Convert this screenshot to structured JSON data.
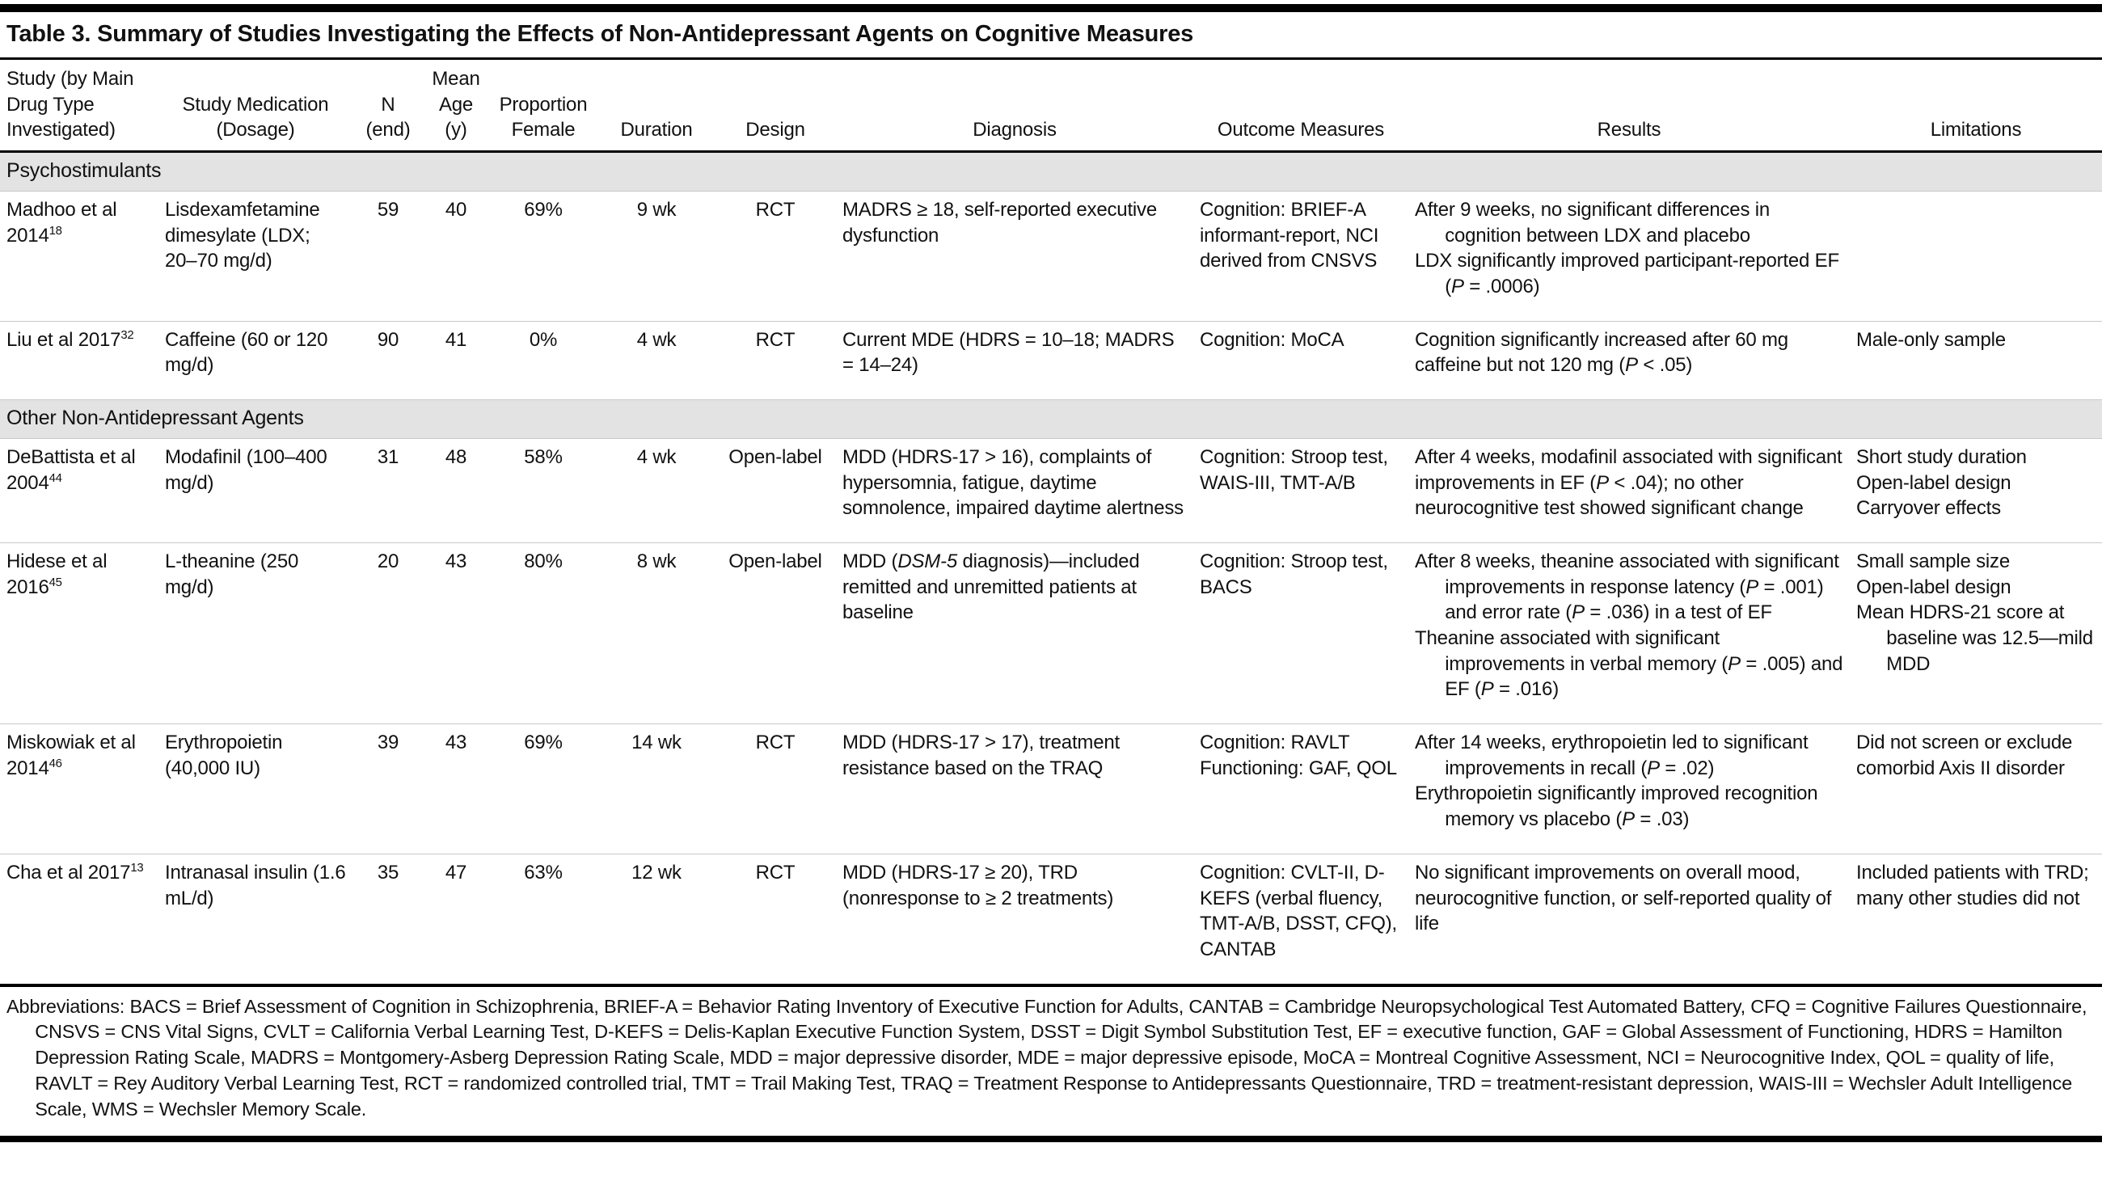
{
  "table": {
    "title": "Table 3. Summary of Studies Investigating the Effects of Non-Antidepressant Agents on Cognitive Measures",
    "columns": [
      {
        "key": "study",
        "align": "left",
        "cellAlign": "left",
        "lines": [
          "Study (by Main",
          "Drug Type",
          "Investigated)"
        ]
      },
      {
        "key": "medication",
        "align": "center",
        "cellAlign": "left",
        "lines": [
          "Study Medication",
          "(Dosage)"
        ]
      },
      {
        "key": "n",
        "align": "center",
        "cellAlign": "center",
        "lines": [
          "N",
          "(end)"
        ]
      },
      {
        "key": "age",
        "align": "center",
        "cellAlign": "center",
        "lines": [
          "Mean",
          "Age",
          "(y)"
        ]
      },
      {
        "key": "female",
        "align": "center",
        "cellAlign": "center",
        "lines": [
          "Proportion",
          "Female"
        ]
      },
      {
        "key": "duration",
        "align": "center",
        "cellAlign": "center",
        "lines": [
          "Duration"
        ]
      },
      {
        "key": "design",
        "align": "center",
        "cellAlign": "center",
        "lines": [
          "Design"
        ]
      },
      {
        "key": "diagnosis",
        "align": "center",
        "cellAlign": "left",
        "lines": [
          "Diagnosis"
        ]
      },
      {
        "key": "outcomes",
        "align": "center",
        "cellAlign": "left",
        "lines": [
          "Outcome Measures"
        ]
      },
      {
        "key": "results",
        "align": "center",
        "cellAlign": "left",
        "lines": [
          "Results"
        ]
      },
      {
        "key": "limitations",
        "align": "center",
        "cellAlign": "left",
        "lines": [
          "Limitations"
        ]
      }
    ],
    "sections": [
      {
        "label": "Psychostimulants",
        "rows": [
          {
            "study": "Madhoo et al 2014",
            "ref": "18",
            "medication": "Lisdexamfetamine dimesylate (LDX; 20–70 mg/d)",
            "n": "59",
            "age": "40",
            "female": "69%",
            "duration": "9 wk",
            "design": "RCT",
            "diagnosis": "MADRS ≥ 18, self-reported executive dysfunction",
            "outcomes": [
              "Cognition: BRIEF-A informant-report, NCI derived from CNSVS"
            ],
            "results": [
              "After 9 weeks, no significant differences in cognition between LDX and placebo",
              "LDX significantly improved participant-reported EF (*P* = .0006)"
            ],
            "limitations": []
          },
          {
            "study": "Liu et al 2017",
            "ref": "32",
            "medication": "Caffeine (60 or 120 mg/d)",
            "n": "90",
            "age": "41",
            "female": "0%",
            "duration": "4 wk",
            "design": "RCT",
            "diagnosis": "Current MDE (HDRS = 10–18; MADRS = 14–24)",
            "outcomes": [
              "Cognition: MoCA"
            ],
            "results": [
              "Cognition significantly increased after 60 mg caffeine but not 120 mg (*P* < .05)"
            ],
            "limitations": [
              "Male-only sample"
            ]
          }
        ]
      },
      {
        "label": "Other Non-Antidepressant Agents",
        "rows": [
          {
            "study": "DeBattista et al 2004",
            "ref": "44",
            "medication": "Modafinil (100–400 mg/d)",
            "n": "31",
            "age": "48",
            "female": "58%",
            "duration": "4 wk",
            "design": "Open-label",
            "diagnosis": "MDD (HDRS-17 > 16), complaints of hypersomnia, fatigue, daytime somnolence, impaired daytime alertness",
            "outcomes": [
              "Cognition: Stroop test, WAIS-III, TMT-A/B"
            ],
            "results": [
              "After 4 weeks, modafinil associated with significant improvements in EF (*P* < .04); no other neurocognitive test showed significant change"
            ],
            "limitations": [
              "Short study duration",
              "Open-label design",
              "Carryover effects"
            ]
          },
          {
            "study": "Hidese et al 2016",
            "ref": "45",
            "medication": "L-theanine (250 mg/d)",
            "n": "20",
            "age": "43",
            "female": "80%",
            "duration": "8 wk",
            "design": "Open-label",
            "diagnosis": "MDD (*DSM-5* diagnosis)—included remitted and unremitted patients at baseline",
            "outcomes": [
              "Cognition: Stroop test, BACS"
            ],
            "results": [
              "After 8 weeks, theanine associated with significant improvements in response latency (*P* = .001) and error rate (*P* = .036) in a test of EF",
              "Theanine associated with significant improvements in verbal memory (*P* = .005) and EF (*P* = .016)"
            ],
            "limitations": [
              "Small sample size",
              "Open-label design",
              "Mean HDRS-21 score at baseline was 12.5—mild MDD"
            ]
          },
          {
            "study": "Miskowiak et al 2014",
            "ref": "46",
            "medication": "Erythropoietin (40,000 IU)",
            "n": "39",
            "age": "43",
            "female": "69%",
            "duration": "14 wk",
            "design": "RCT",
            "diagnosis": "MDD (HDRS-17 > 17), treatment resistance based on the TRAQ",
            "outcomes": [
              "Cognition: RAVLT",
              "Functioning: GAF, QOL"
            ],
            "results": [
              "After 14 weeks, erythropoietin led to significant improvements in recall (*P* = .02)",
              "Erythropoietin significantly improved recognition memory vs placebo (*P* = .03)"
            ],
            "limitations": [
              "Did not screen or exclude comorbid Axis II disorder"
            ]
          },
          {
            "study": "Cha et al 2017",
            "ref": "13",
            "medication": "Intranasal insulin (1.6 mL/d)",
            "n": "35",
            "age": "47",
            "female": "63%",
            "duration": "12 wk",
            "design": "RCT",
            "diagnosis": "MDD (HDRS-17 ≥ 20), TRD (nonresponse to ≥ 2 treatments)",
            "outcomes": [
              "Cognition: CVLT-II, D-KEFS (verbal fluency, TMT-A/B, DSST, CFQ), CANTAB"
            ],
            "results": [
              "No significant improvements on overall mood, neurocognitive function, or self-reported quality of life"
            ],
            "limitations": [
              "Included patients with TRD; many other studies did not"
            ]
          }
        ]
      }
    ],
    "footnote": "Abbreviations: BACS = Brief Assessment of Cognition in Schizophrenia, BRIEF-A = Behavior Rating Inventory of Executive Function for Adults, CANTAB = Cambridge Neuropsychological Test Automated Battery, CFQ = Cognitive Failures Questionnaire, CNSVS = CNS Vital Signs, CVLT = California Verbal Learning Test, D-KEFS = Delis-Kaplan Executive Function System, DSST = Digit Symbol Substitution Test, EF = executive function, GAF = Global Assessment of Functioning, HDRS = Hamilton Depression Rating Scale, MADRS = Montgomery-Asberg Depression Rating Scale, MDD = major depressive disorder, MDE = major depressive episode, MoCA = Montreal Cognitive Assessment, NCI = Neurocognitive Index, QOL = quality of life, RAVLT = Rey Auditory Verbal Learning Test, RCT = randomized controlled trial, TMT = Trail Making Test, TRAQ = Treatment Response to Antidepressants Questionnaire, TRD = treatment-resistant depression, WAIS-III = Wechsler Adult Intelligence Scale, WMS = Wechsler Memory Scale."
  }
}
